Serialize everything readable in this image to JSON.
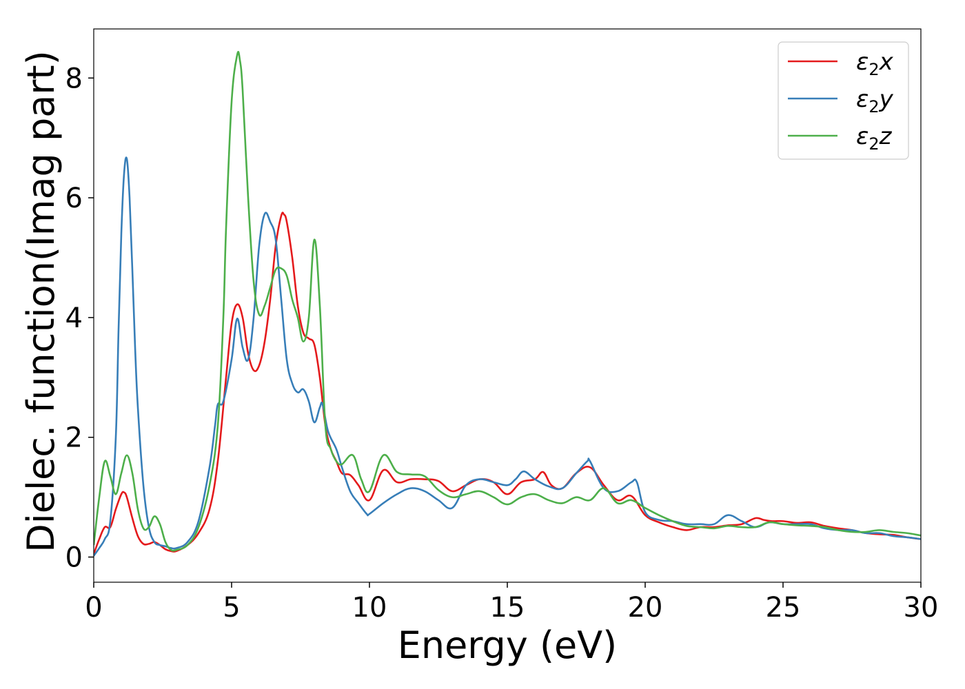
{
  "chart_data": {
    "type": "line",
    "title": "",
    "xlabel": "Energy (eV)",
    "ylabel": "Dielec. function(Imag part)",
    "xlim": [
      0,
      30
    ],
    "ylim": [
      -0.42,
      8.82
    ],
    "xticks": [
      0,
      5,
      10,
      15,
      20,
      25,
      30
    ],
    "xtick_labels": [
      "0",
      "5",
      "10",
      "15",
      "20",
      "25",
      "30"
    ],
    "yticks": [
      0,
      2,
      4,
      6,
      8
    ],
    "ytick_labels": [
      "0",
      "2",
      "4",
      "6",
      "8"
    ],
    "grid": false,
    "legend_position": "top-right",
    "series": [
      {
        "name": "ε2x",
        "label_base": "ε",
        "label_sub": "2",
        "label_var": "x",
        "color": "#e41a1c",
        "x": [
          0,
          0.2,
          0.4,
          0.6,
          0.8,
          1.0,
          1.1,
          1.2,
          1.4,
          1.6,
          1.8,
          2.0,
          2.2,
          2.4,
          2.6,
          2.8,
          3.0,
          3.4,
          3.8,
          4.2,
          4.5,
          4.8,
          5.0,
          5.2,
          5.4,
          5.6,
          5.8,
          6.0,
          6.2,
          6.4,
          6.6,
          6.8,
          6.9,
          7.0,
          7.2,
          7.4,
          7.6,
          7.8,
          8.0,
          8.2,
          8.4,
          8.6,
          8.8,
          9.0,
          9.3,
          9.6,
          10.0,
          10.5,
          11.0,
          11.5,
          12.0,
          12.5,
          13.0,
          13.5,
          14.0,
          14.5,
          15.0,
          15.5,
          16.0,
          16.3,
          16.6,
          17.0,
          17.5,
          18.0,
          18.5,
          19.0,
          19.5,
          20.0,
          20.5,
          21.0,
          21.5,
          22.0,
          22.5,
          23.0,
          23.5,
          24.0,
          24.3,
          24.6,
          25.0,
          25.5,
          26.0,
          26.5,
          27.0,
          27.5,
          28.0,
          28.5,
          29.0,
          29.5,
          30.0
        ],
        "y": [
          0.05,
          0.3,
          0.5,
          0.5,
          0.8,
          1.05,
          1.08,
          1.0,
          0.65,
          0.35,
          0.22,
          0.22,
          0.25,
          0.2,
          0.13,
          0.1,
          0.1,
          0.2,
          0.4,
          0.8,
          1.6,
          3.0,
          3.9,
          4.22,
          4.0,
          3.4,
          3.12,
          3.2,
          3.6,
          4.3,
          5.2,
          5.7,
          5.72,
          5.6,
          5.0,
          4.2,
          3.75,
          3.65,
          3.55,
          3.0,
          2.2,
          1.8,
          1.6,
          1.4,
          1.37,
          1.2,
          0.95,
          1.45,
          1.25,
          1.3,
          1.3,
          1.27,
          1.1,
          1.2,
          1.3,
          1.25,
          1.05,
          1.25,
          1.3,
          1.42,
          1.2,
          1.15,
          1.4,
          1.5,
          1.2,
          0.95,
          1.02,
          0.7,
          0.58,
          0.5,
          0.45,
          0.5,
          0.5,
          0.53,
          0.55,
          0.65,
          0.62,
          0.6,
          0.6,
          0.57,
          0.58,
          0.52,
          0.48,
          0.45,
          0.4,
          0.38,
          0.37,
          0.33,
          0.3
        ]
      },
      {
        "name": "ε2y",
        "label_base": "ε",
        "label_sub": "2",
        "label_var": "y",
        "color": "#377eb8",
        "x": [
          0,
          0.2,
          0.4,
          0.6,
          0.8,
          0.9,
          1.0,
          1.1,
          1.2,
          1.3,
          1.4,
          1.5,
          1.6,
          1.8,
          2.0,
          2.2,
          2.4,
          2.6,
          2.8,
          3.0,
          3.4,
          3.8,
          4.2,
          4.4,
          4.5,
          4.7,
          5.0,
          5.2,
          5.4,
          5.6,
          5.8,
          6.0,
          6.2,
          6.4,
          6.6,
          6.8,
          7.0,
          7.2,
          7.4,
          7.6,
          7.8,
          8.0,
          8.2,
          8.3,
          8.5,
          8.8,
          9.0,
          9.3,
          9.6,
          9.9,
          10.0,
          10.5,
          11.0,
          11.5,
          12.0,
          12.5,
          13.0,
          13.5,
          14.0,
          14.5,
          15.0,
          15.3,
          15.6,
          16.0,
          16.5,
          17.0,
          17.5,
          17.9,
          18.0,
          18.5,
          19.0,
          19.5,
          19.7,
          20.0,
          20.5,
          21.0,
          21.5,
          22.0,
          22.5,
          23.0,
          23.5,
          24.0,
          24.5,
          25.0,
          25.5,
          26.0,
          26.5,
          27.0,
          27.5,
          28.0,
          28.5,
          29.0,
          29.5,
          30.0
        ],
        "y": [
          0.02,
          0.15,
          0.3,
          0.6,
          2.0,
          3.8,
          5.4,
          6.4,
          6.65,
          6.0,
          4.8,
          3.5,
          2.5,
          1.2,
          0.5,
          0.25,
          0.2,
          0.18,
          0.15,
          0.15,
          0.25,
          0.6,
          1.5,
          2.2,
          2.55,
          2.6,
          3.3,
          3.98,
          3.5,
          3.3,
          4.0,
          5.2,
          5.73,
          5.6,
          5.3,
          4.3,
          3.3,
          2.9,
          2.75,
          2.8,
          2.6,
          2.25,
          2.5,
          2.55,
          2.1,
          1.8,
          1.5,
          1.1,
          0.9,
          0.72,
          0.72,
          0.9,
          1.05,
          1.15,
          1.1,
          0.95,
          0.82,
          1.2,
          1.3,
          1.25,
          1.2,
          1.3,
          1.43,
          1.3,
          1.18,
          1.15,
          1.4,
          1.6,
          1.6,
          1.15,
          1.1,
          1.25,
          1.25,
          0.75,
          0.62,
          0.6,
          0.55,
          0.55,
          0.55,
          0.7,
          0.6,
          0.5,
          0.58,
          0.55,
          0.55,
          0.55,
          0.48,
          0.45,
          0.45,
          0.4,
          0.4,
          0.35,
          0.33,
          0.3
        ]
      },
      {
        "name": "ε2z",
        "label_base": "ε",
        "label_sub": "2",
        "label_var": "z",
        "color": "#4daf4a",
        "x": [
          0,
          0.2,
          0.4,
          0.6,
          0.8,
          1.0,
          1.2,
          1.4,
          1.6,
          1.8,
          2.0,
          2.2,
          2.4,
          2.6,
          2.8,
          3.0,
          3.4,
          3.8,
          4.2,
          4.5,
          4.7,
          4.8,
          5.0,
          5.2,
          5.3,
          5.4,
          5.6,
          5.8,
          6.0,
          6.2,
          6.4,
          6.6,
          6.8,
          7.0,
          7.2,
          7.4,
          7.6,
          7.8,
          8.0,
          8.2,
          8.4,
          8.6,
          8.8,
          9.0,
          9.4,
          9.7,
          10.0,
          10.5,
          11.0,
          11.5,
          12.0,
          12.5,
          13.0,
          13.5,
          14.0,
          14.5,
          15.0,
          15.5,
          16.0,
          16.5,
          17.0,
          17.5,
          18.0,
          18.5,
          19.0,
          19.5,
          20.0,
          20.5,
          21.0,
          21.5,
          22.0,
          22.5,
          23.0,
          23.5,
          24.0,
          24.5,
          25.0,
          25.5,
          26.0,
          26.5,
          27.0,
          27.5,
          28.0,
          28.5,
          29.0,
          29.5,
          30.0
        ],
        "y": [
          0.2,
          1.0,
          1.6,
          1.35,
          1.05,
          1.4,
          1.7,
          1.4,
          0.8,
          0.48,
          0.5,
          0.68,
          0.55,
          0.25,
          0.12,
          0.12,
          0.2,
          0.5,
          1.2,
          2.2,
          4.0,
          5.5,
          7.6,
          8.38,
          8.3,
          7.8,
          6.0,
          4.6,
          4.05,
          4.2,
          4.5,
          4.8,
          4.82,
          4.7,
          4.3,
          4.0,
          3.6,
          4.0,
          5.3,
          4.2,
          2.2,
          1.8,
          1.6,
          1.55,
          1.7,
          1.3,
          1.1,
          1.7,
          1.42,
          1.38,
          1.35,
          1.12,
          1.0,
          1.05,
          1.1,
          1.0,
          0.88,
          1.0,
          1.05,
          0.95,
          0.9,
          1.0,
          0.95,
          1.15,
          0.9,
          0.95,
          0.82,
          0.7,
          0.6,
          0.52,
          0.5,
          0.48,
          0.52,
          0.5,
          0.5,
          0.58,
          0.55,
          0.53,
          0.52,
          0.5,
          0.45,
          0.42,
          0.42,
          0.45,
          0.42,
          0.4,
          0.36
        ]
      }
    ]
  }
}
